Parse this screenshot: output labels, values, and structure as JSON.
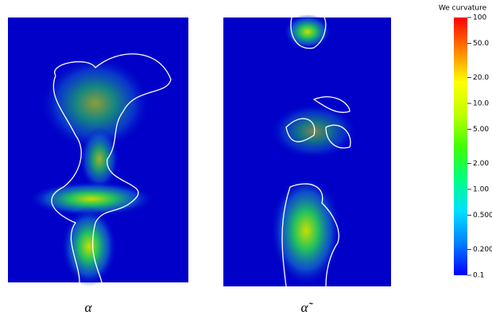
{
  "chart_data": {
    "type": "field",
    "panels": [
      {
        "label": "α"
      },
      {
        "label": "α̃"
      }
    ],
    "colorbar": {
      "title": "We curvature",
      "scale": "log",
      "lim": [
        0.1,
        100
      ],
      "ticks": [
        0.1,
        {
          "value": 0.2,
          "label": "0.200"
        },
        {
          "value": 0.5,
          "label": "0.500"
        },
        {
          "value": 1,
          "label": "1.00"
        },
        {
          "value": 2,
          "label": "2.00"
        },
        {
          "value": 5,
          "label": "5.00"
        },
        {
          "value": 10,
          "label": "10.0"
        },
        {
          "value": 20,
          "label": "20.0"
        },
        {
          "value": 50,
          "label": "50.0"
        },
        100
      ],
      "colors": [
        "#0000ff",
        "#0080ff",
        "#00e0ff",
        "#00ff80",
        "#40ff00",
        "#c0ff00",
        "#ffff00",
        "#ff8000",
        "#ff0000"
      ]
    }
  }
}
